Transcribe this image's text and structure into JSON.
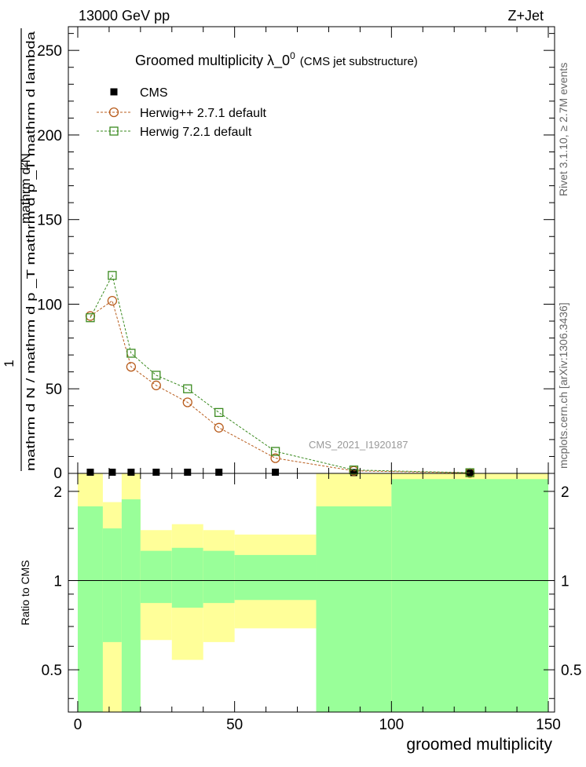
{
  "header": {
    "left": "13000 GeV pp",
    "right": "Z+Jet"
  },
  "side": {
    "rivet": "Rivet 3.1.10, ≥ 2.7M events",
    "mcplots": "mcplots.cern.ch [arXiv:1306.3436]"
  },
  "chart_data": {
    "type": "line",
    "title": "Groomed multiplicity  λ_0",
    "title_sup": "0",
    "title_suffix": "(CMS jet substructure)",
    "xlabel": "groomed multiplicity",
    "ylabel_numerator": "mathrm d²N",
    "ylabel_denominator": "mathrm d N / mathrm d p _T mathrm d p _T mathrm d lambda",
    "ylabel_prefix": "1",
    "ratio_ylabel": "Ratio to CMS",
    "watermark": "CMS_2021_I1920187",
    "xlim": [
      -3,
      152
    ],
    "ylim": [
      0,
      264
    ],
    "ratio_ylim": [
      0.36,
      2.3
    ],
    "x_ticks": [
      0,
      50,
      100,
      150
    ],
    "y_ticks": [
      50,
      100,
      150,
      200,
      250
    ],
    "ratio_ticks": [
      0.5,
      1,
      2
    ],
    "legend": [
      "CMS",
      "Herwig++ 2.7.1 default",
      "Herwig 7.2.1 default"
    ],
    "bin_edges": [
      0,
      8,
      14,
      20,
      30,
      40,
      50,
      76,
      100,
      150
    ],
    "series": [
      {
        "name": "CMS",
        "marker": "filled-square",
        "color": "#000000",
        "x": [
          4,
          11,
          17,
          25,
          35,
          45,
          63,
          88,
          125
        ],
        "values": [
          0.7,
          0.7,
          0.7,
          0.7,
          0.7,
          0.7,
          0.7,
          0.5,
          0.2
        ]
      },
      {
        "name": "Herwig++ 2.7.1 default",
        "marker": "open-circle",
        "color": "#b85c1c",
        "x": [
          4,
          11,
          17,
          25,
          35,
          45,
          63,
          88,
          125
        ],
        "values": [
          93,
          102,
          63,
          52,
          42,
          27,
          9,
          1.5,
          0.3
        ]
      },
      {
        "name": "Herwig 7.2.1 default",
        "marker": "open-square",
        "color": "#3a8a1f",
        "x": [
          4,
          11,
          17,
          25,
          35,
          45,
          63,
          88,
          125
        ],
        "values": [
          92,
          117,
          71,
          58,
          50,
          36,
          13,
          2,
          0.4
        ]
      }
    ],
    "ratio_bands": {
      "yellow": [
        [
          0.36,
          2.3
        ],
        [
          0.36,
          1.84
        ],
        [
          0.36,
          2.3
        ],
        [
          0.63,
          1.48
        ],
        [
          0.54,
          1.55
        ],
        [
          0.62,
          1.48
        ],
        [
          0.69,
          1.43
        ],
        [
          0.36,
          2.3
        ],
        [
          0.36,
          2.3
        ]
      ],
      "green": [
        [
          0.36,
          1.78
        ],
        [
          0.62,
          1.5
        ],
        [
          0.36,
          1.88
        ],
        [
          0.84,
          1.26
        ],
        [
          0.81,
          1.29
        ],
        [
          0.84,
          1.26
        ],
        [
          0.86,
          1.22
        ],
        [
          0.36,
          1.78
        ],
        [
          0.36,
          2.2
        ]
      ]
    },
    "colors": {
      "band_yellow": "#ffff99",
      "band_green": "#99ff99"
    }
  }
}
